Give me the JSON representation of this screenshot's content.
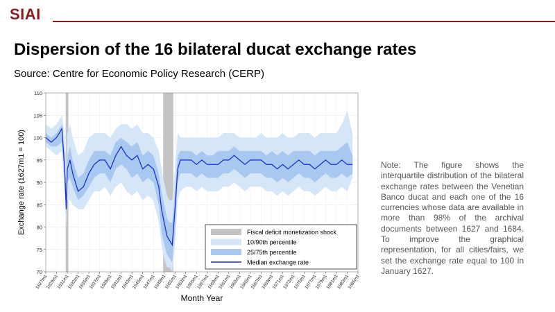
{
  "header": {
    "logo": "SIAI"
  },
  "slide": {
    "title": "Dispersion of the 16 bilateral ducat exchange rates",
    "source": "Source: Centre for Economic Policy Research (CERP)",
    "note": "Note: The figure shows the interquartile distribution of the bilateral exchange rates between the Venetian Banco ducat and each one of the 16 currencies whose data are available in more than 98% of the archival documents between 1627 and 1684. To improve the graphical representation, for all cities/fairs, we set the exchange rate equal to 100 in January 1627."
  },
  "colors": {
    "brand": "#8b1a1a",
    "median": "#1a2fcc",
    "band_25_75": "#a9c8f0",
    "band_10_90": "#d6e6f9",
    "shock": "#c4c4c4"
  },
  "chart_data": {
    "type": "area",
    "xlabel": "Month Year",
    "ylabel": "Exchange rate (1627m1 = 100)",
    "ylim": [
      70,
      110
    ],
    "yticks": [
      70,
      75,
      80,
      85,
      90,
      95,
      100,
      105,
      110
    ],
    "xlim": [
      1627,
      1685
    ],
    "xticks": [
      "1627m1",
      "1629m1",
      "1631m1",
      "1633m1",
      "1635m1",
      "1637m1",
      "1639m1",
      "1641m1",
      "1643m1",
      "1645m1",
      "1647m1",
      "1649m1",
      "1651m1",
      "1653m1",
      "1655m1",
      "1657m1",
      "1659m1",
      "1661m1",
      "1663m1",
      "1665m1",
      "1667m1",
      "1669m1",
      "1671m1",
      "1673m1",
      "1675m1",
      "1677m1",
      "1679m1",
      "1681m1",
      "1683m1",
      "1685m1"
    ],
    "shock_periods": [
      [
        1630.7,
        1631.2
      ],
      [
        1648.8,
        1650.7
      ]
    ],
    "x": [
      1627,
      1628,
      1629,
      1630,
      1630.5,
      1630.8,
      1631,
      1631.5,
      1632,
      1633,
      1634,
      1635,
      1636,
      1637,
      1638,
      1639,
      1640,
      1641,
      1642,
      1643,
      1644,
      1645,
      1646,
      1647,
      1648,
      1648.5,
      1649,
      1649.5,
      1650,
      1650.5,
      1651,
      1651.5,
      1652,
      1653,
      1654,
      1655,
      1656,
      1657,
      1658,
      1659,
      1660,
      1661,
      1662,
      1663,
      1664,
      1665,
      1666,
      1667,
      1668,
      1669,
      1670,
      1671,
      1672,
      1673,
      1674,
      1675,
      1676,
      1677,
      1678,
      1679,
      1680,
      1681,
      1682,
      1683,
      1684
    ],
    "series": [
      {
        "name": "Median exchange rate",
        "values": [
          100,
          99,
          100,
          102,
          93,
          84,
          93,
          95,
          92,
          88,
          89,
          92,
          94,
          95,
          95,
          93,
          96,
          98,
          96,
          95,
          96,
          93,
          94,
          93,
          89,
          84,
          81,
          78,
          77,
          76,
          84,
          93,
          95,
          95,
          95,
          94,
          95,
          94,
          94,
          94,
          95,
          95,
          96,
          95,
          94,
          95,
          95,
          95,
          94,
          94,
          93,
          94,
          93,
          94,
          95,
          94,
          94,
          93,
          94,
          95,
          94,
          94,
          95,
          94,
          94
        ]
      },
      {
        "name": "25/75th percentile",
        "lower": [
          99,
          98,
          98,
          99,
          90,
          82,
          90,
          91,
          89,
          86,
          87,
          89,
          91,
          92,
          92,
          90,
          93,
          94,
          93,
          91,
          92,
          90,
          91,
          90,
          85,
          79,
          76,
          74,
          73,
          72,
          79,
          90,
          92,
          92,
          92,
          91,
          92,
          91,
          91,
          91,
          92,
          92,
          93,
          92,
          91,
          92,
          92,
          92,
          91,
          91,
          90,
          91,
          90,
          91,
          92,
          91,
          91,
          90,
          91,
          92,
          91,
          91,
          92,
          91,
          92
        ],
        "upper": [
          101,
          100,
          101,
          103,
          96,
          87,
          96,
          98,
          95,
          91,
          92,
          95,
          97,
          97,
          97,
          96,
          99,
          100,
          99,
          98,
          99,
          96,
          97,
          96,
          92,
          88,
          85,
          82,
          81,
          81,
          88,
          96,
          97,
          97,
          97,
          96,
          97,
          96,
          96,
          97,
          97,
          97,
          98,
          97,
          97,
          97,
          97,
          97,
          96,
          97,
          96,
          97,
          96,
          97,
          97,
          97,
          97,
          96,
          97,
          97,
          97,
          97,
          98,
          99,
          96
        ]
      },
      {
        "name": "10/90th percentile",
        "lower": [
          98,
          97,
          96,
          97,
          87,
          80,
          86,
          86,
          85,
          84,
          84,
          86,
          88,
          88,
          89,
          87,
          89,
          90,
          88,
          87,
          88,
          86,
          87,
          86,
          81,
          76,
          73,
          71,
          71,
          70,
          76,
          86,
          88,
          89,
          89,
          88,
          89,
          88,
          88,
          88,
          89,
          89,
          90,
          89,
          88,
          89,
          89,
          89,
          88,
          88,
          87,
          88,
          87,
          88,
          89,
          88,
          88,
          87,
          88,
          89,
          88,
          88,
          89,
          88,
          91
        ],
        "upper": [
          103,
          102,
          103,
          105,
          101,
          92,
          101,
          103,
          100,
          96,
          97,
          100,
          101,
          101,
          101,
          100,
          102,
          103,
          103,
          102,
          103,
          101,
          101,
          100,
          97,
          93,
          90,
          87,
          86,
          86,
          93,
          101,
          100,
          100,
          100,
          100,
          100,
          100,
          100,
          100,
          101,
          101,
          101,
          100,
          100,
          100,
          100,
          101,
          100,
          100,
          100,
          101,
          100,
          100,
          101,
          101,
          101,
          100,
          101,
          101,
          101,
          101,
          103,
          106,
          101
        ]
      }
    ],
    "legend": {
      "placement": "bottom-right",
      "entries": [
        "Fiscal deficit monetization shock",
        "10/90th percentile",
        "25/75th percentile",
        "Median exchange rate"
      ]
    },
    "grid": true
  }
}
